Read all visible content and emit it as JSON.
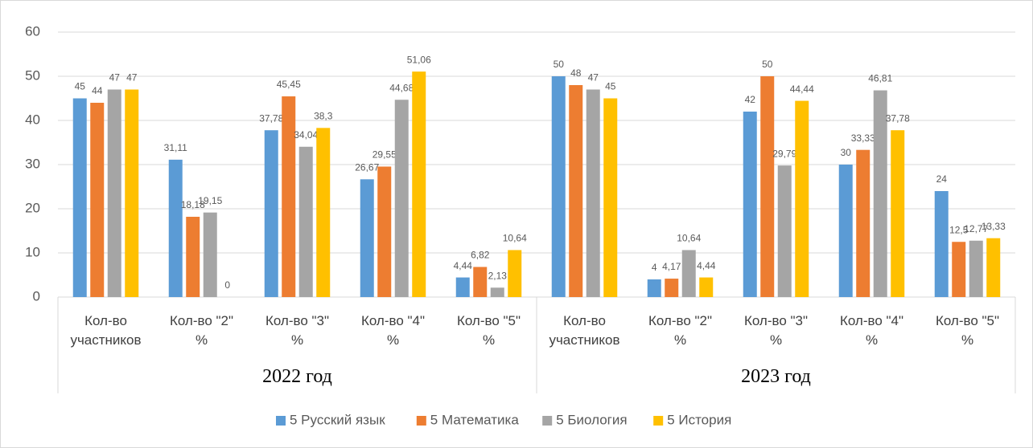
{
  "chart_data": {
    "type": "bar",
    "categories": [
      "Кол-во участников",
      "Кол-во \"2\" %",
      "Кол-во \"3\" %",
      "Кол-во \"4\" %",
      "Кол-во \"5\" %",
      "Кол-во участников",
      "Кол-во \"2\" %",
      "Кол-во \"3\" %",
      "Кол-во \"4\" %",
      "Кол-во \"5\" %"
    ],
    "groups": [
      "2022 год",
      "2023 год"
    ],
    "series": [
      {
        "name": "5 Русский язык",
        "color": "#5b9bd5",
        "values": [
          45,
          31.11,
          37.78,
          26.67,
          4.44,
          50,
          4,
          42,
          30,
          24
        ],
        "value_labels": [
          "45",
          "31,11",
          "37,78",
          "26,67",
          "4,44",
          "50",
          "4",
          "42",
          "30",
          "24"
        ]
      },
      {
        "name": "5 Математика",
        "color": "#ed7d31",
        "values": [
          44,
          18.18,
          45.45,
          29.55,
          6.82,
          48,
          4.17,
          50,
          33.33,
          12.5
        ],
        "value_labels": [
          "44",
          "18,18",
          "45,45",
          "29,55",
          "6,82",
          "48",
          "4,17",
          "50",
          "33,33",
          "12,5"
        ]
      },
      {
        "name": "5 Биология",
        "color": "#a5a5a5",
        "values": [
          47,
          19.15,
          34.04,
          44.68,
          2.13,
          47,
          10.64,
          29.79,
          46.81,
          12.77
        ],
        "value_labels": [
          "47",
          "19,15",
          "34,04",
          "44,68",
          "2,13",
          "47",
          "10,64",
          "29,79",
          "46,81",
          "12,77"
        ]
      },
      {
        "name": "5 История",
        "color": "#ffc000",
        "values": [
          47,
          0,
          38.3,
          51.06,
          10.64,
          45,
          4.44,
          44.44,
          37.78,
          13.33
        ],
        "value_labels": [
          "47",
          "0",
          "38,3",
          "51,06",
          "10,64",
          "45",
          "4,44",
          "44,44",
          "37,78",
          "13,33"
        ]
      }
    ],
    "ylim": [
      0,
      60
    ],
    "yticks": [
      0,
      10,
      20,
      30,
      40,
      50,
      60
    ],
    "grid": true,
    "legend": "bottom"
  }
}
